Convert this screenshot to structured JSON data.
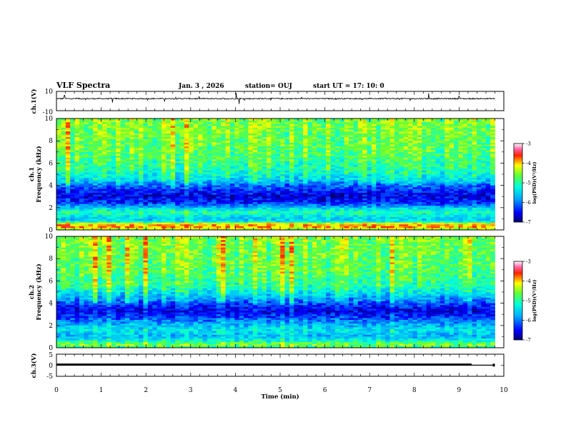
{
  "header": {
    "title": "VLF Spectra",
    "date": "Jan. 3 , 2026",
    "station": "station= OUJ",
    "start": "start UT = 17: 10: 0"
  },
  "colors": {
    "frame": "#000000",
    "grid": "#b8d8b8",
    "trace": "#000000"
  },
  "chart_data": [
    {
      "type": "line",
      "panel": "ch1-waveform",
      "ylabel": "ch.1(V)",
      "ylim": [
        -10,
        10
      ],
      "ytick_labels": [
        "10",
        "-10"
      ],
      "baseline": 2.5,
      "noise_amplitude": 0.6,
      "spikes": [
        {
          "x": 0.18,
          "y": 6.0
        },
        {
          "x": 1.25,
          "y": -1.5
        },
        {
          "x": 2.42,
          "y": -0.5
        },
        {
          "x": 4.02,
          "y": 8.5
        },
        {
          "x": 4.08,
          "y": -3.0
        },
        {
          "x": 8.32,
          "y": 8.0
        },
        {
          "x": 9.0,
          "y": 5.0
        }
      ]
    },
    {
      "type": "heatmap",
      "panel": "ch1-spectrogram",
      "ylabel": [
        "ch.1",
        "Frequency (kHz)"
      ],
      "ylim": [
        0,
        10
      ],
      "ytick_labels": [
        "0",
        "2",
        "4",
        "6",
        "8",
        "10"
      ],
      "colorbar": {
        "label": "log(PSD)(V²/Hz)",
        "range": [
          -7,
          -3
        ],
        "tick_labels": [
          "-3",
          "-4",
          "-5",
          "-6",
          "-7"
        ]
      },
      "x_extent_min": [
        0,
        9.8
      ],
      "band_profile_khz": [
        {
          "f": 0.0,
          "v": -4.6
        },
        {
          "f": 0.3,
          "v": -3.9
        },
        {
          "f": 0.55,
          "v": -4.2
        },
        {
          "f": 0.8,
          "v": -5.6
        },
        {
          "f": 1.2,
          "v": -5.4
        },
        {
          "f": 1.6,
          "v": -5.0
        },
        {
          "f": 2.0,
          "v": -5.6
        },
        {
          "f": 2.4,
          "v": -6.3
        },
        {
          "f": 3.0,
          "v": -6.6
        },
        {
          "f": 3.5,
          "v": -6.4
        },
        {
          "f": 4.0,
          "v": -6.0
        },
        {
          "f": 4.5,
          "v": -5.4
        },
        {
          "f": 5.5,
          "v": -5.0
        },
        {
          "f": 7.0,
          "v": -4.75
        },
        {
          "f": 10.0,
          "v": -4.6
        }
      ]
    },
    {
      "type": "heatmap",
      "panel": "ch2-spectrogram",
      "ylabel": [
        "ch.2",
        "Frequency (kHz)"
      ],
      "ylim": [
        0,
        10
      ],
      "ytick_labels": [
        "0",
        "2",
        "4",
        "6",
        "8",
        "10"
      ],
      "colorbar": {
        "label": "log(PSD)(V²/Hz)",
        "range": [
          -7,
          -3
        ],
        "tick_labels": [
          "-3",
          "-4",
          "-5",
          "-6",
          "-7"
        ]
      },
      "x_extent_min": [
        0,
        9.8
      ],
      "band_profile_khz": [
        {
          "f": 0.0,
          "v": -5.0
        },
        {
          "f": 0.3,
          "v": -4.6
        },
        {
          "f": 0.6,
          "v": -5.2
        },
        {
          "f": 1.0,
          "v": -5.7
        },
        {
          "f": 1.6,
          "v": -5.4
        },
        {
          "f": 2.2,
          "v": -5.8
        },
        {
          "f": 2.8,
          "v": -6.3
        },
        {
          "f": 3.3,
          "v": -6.6
        },
        {
          "f": 3.8,
          "v": -6.3
        },
        {
          "f": 4.3,
          "v": -5.8
        },
        {
          "f": 5.5,
          "v": -5.0
        },
        {
          "f": 7.0,
          "v": -4.75
        },
        {
          "f": 10.0,
          "v": -4.6
        }
      ]
    },
    {
      "type": "line",
      "panel": "ch3-waveform",
      "ylabel": "ch.3(V)",
      "ylim": [
        -5,
        5
      ],
      "ytick_labels": [
        "5",
        "0",
        "-5"
      ],
      "segments": [
        {
          "x0": 0,
          "x1": 9.28,
          "y": 0.3
        },
        {
          "x0": 9.28,
          "x1": 9.8,
          "y": 0.05
        }
      ]
    }
  ],
  "xaxis": {
    "label": "Time (min)",
    "range": [
      0,
      10
    ],
    "tick_labels": [
      "0",
      "1",
      "2",
      "3",
      "4",
      "5",
      "6",
      "7",
      "8",
      "9",
      "10"
    ]
  }
}
